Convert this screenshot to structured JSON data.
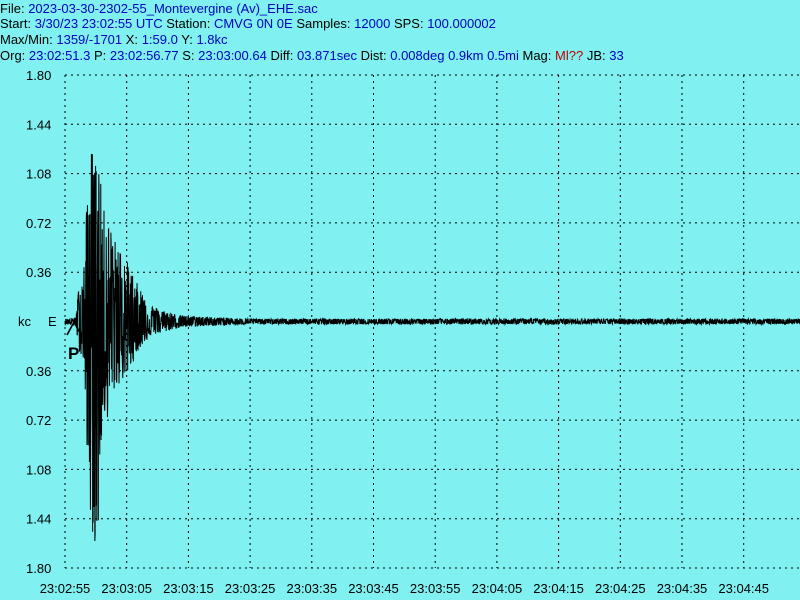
{
  "header": {
    "file_label": "File:",
    "file_name": "2023-03-30-2302-55_Montevergine (Av)_EHE.sac",
    "start_label": "Start:",
    "start_value": "3/30/23 23:02:55 UTC",
    "station_label": "Station:",
    "station_value": "CMVG 0N 0E",
    "samples_label": "Samples:",
    "samples_value": "12000",
    "sps_label": "SPS:",
    "sps_value": "100.000002",
    "maxmin_label": "Max/Min:",
    "maxmin_value": "1359/-1701",
    "x_label": "X:",
    "x_value": "1:59.0",
    "y_label": "Y:",
    "y_value": "1.8kc",
    "org_label": "Org:",
    "org_value": "23:02:51.3",
    "p_label": "P:",
    "p_value": "23:02:56.77",
    "s_label": "S:",
    "s_value": "23:03:00.64",
    "diff_label": "Diff:",
    "diff_value": "03.871sec",
    "dist_label": "Dist:",
    "dist_value": "0.008deg 0.9km 0.5mi",
    "mag_label": "Mag:",
    "mag_value": "Ml??",
    "jb_label": "JB:",
    "jb_value": "33"
  },
  "chart_data": {
    "type": "line",
    "title": "",
    "xlabel": "",
    "ylabel": "kc",
    "channel": "E",
    "p_marker_label": "P",
    "p_arrival": "23:02:56.77",
    "grid": true,
    "ylim": [
      -1.8,
      1.8
    ],
    "y_ticks_upper": [
      "1.80",
      "1.44",
      "1.08",
      "0.72",
      "0.36"
    ],
    "y_ticks_lower": [
      "0.36",
      "0.72",
      "1.08",
      "1.44",
      "1.80"
    ],
    "x_ticks": [
      "23:02:55",
      "23:03:05",
      "23:03:15",
      "23:03:25",
      "23:03:35",
      "23:03:45",
      "23:03:55",
      "23:04:05",
      "23:04:15",
      "23:04:25",
      "23:04:35",
      "23:04:45"
    ],
    "x_start": "23:02:55",
    "x_duration_sec": 120,
    "series": [
      {
        "description": "seismic trace envelope",
        "envelope_t_sec": [
          0,
          1.77,
          2.2,
          3.0,
          4.0,
          5.0,
          5.5,
          6.0,
          7.0,
          8.0,
          9.0,
          10.0,
          11.0,
          12.0,
          13.0,
          14.0,
          16.0,
          18.0,
          20.0,
          25.0,
          30.0,
          40.0,
          120.0
        ],
        "envelope_max_kc": [
          0.02,
          0.03,
          0.25,
          0.35,
          1.3,
          1.2,
          1.25,
          0.85,
          0.75,
          0.6,
          0.55,
          0.45,
          0.35,
          0.25,
          0.2,
          0.12,
          0.08,
          0.05,
          0.04,
          0.03,
          0.02,
          0.02,
          0.02
        ],
        "envelope_min_kc": [
          -0.02,
          -0.03,
          -0.2,
          -0.3,
          -1.4,
          -1.7,
          -1.5,
          -0.75,
          -0.7,
          -0.5,
          -0.45,
          -0.4,
          -0.3,
          -0.2,
          -0.15,
          -0.1,
          -0.08,
          -0.05,
          -0.04,
          -0.03,
          -0.02,
          -0.02,
          -0.02
        ]
      }
    ]
  }
}
